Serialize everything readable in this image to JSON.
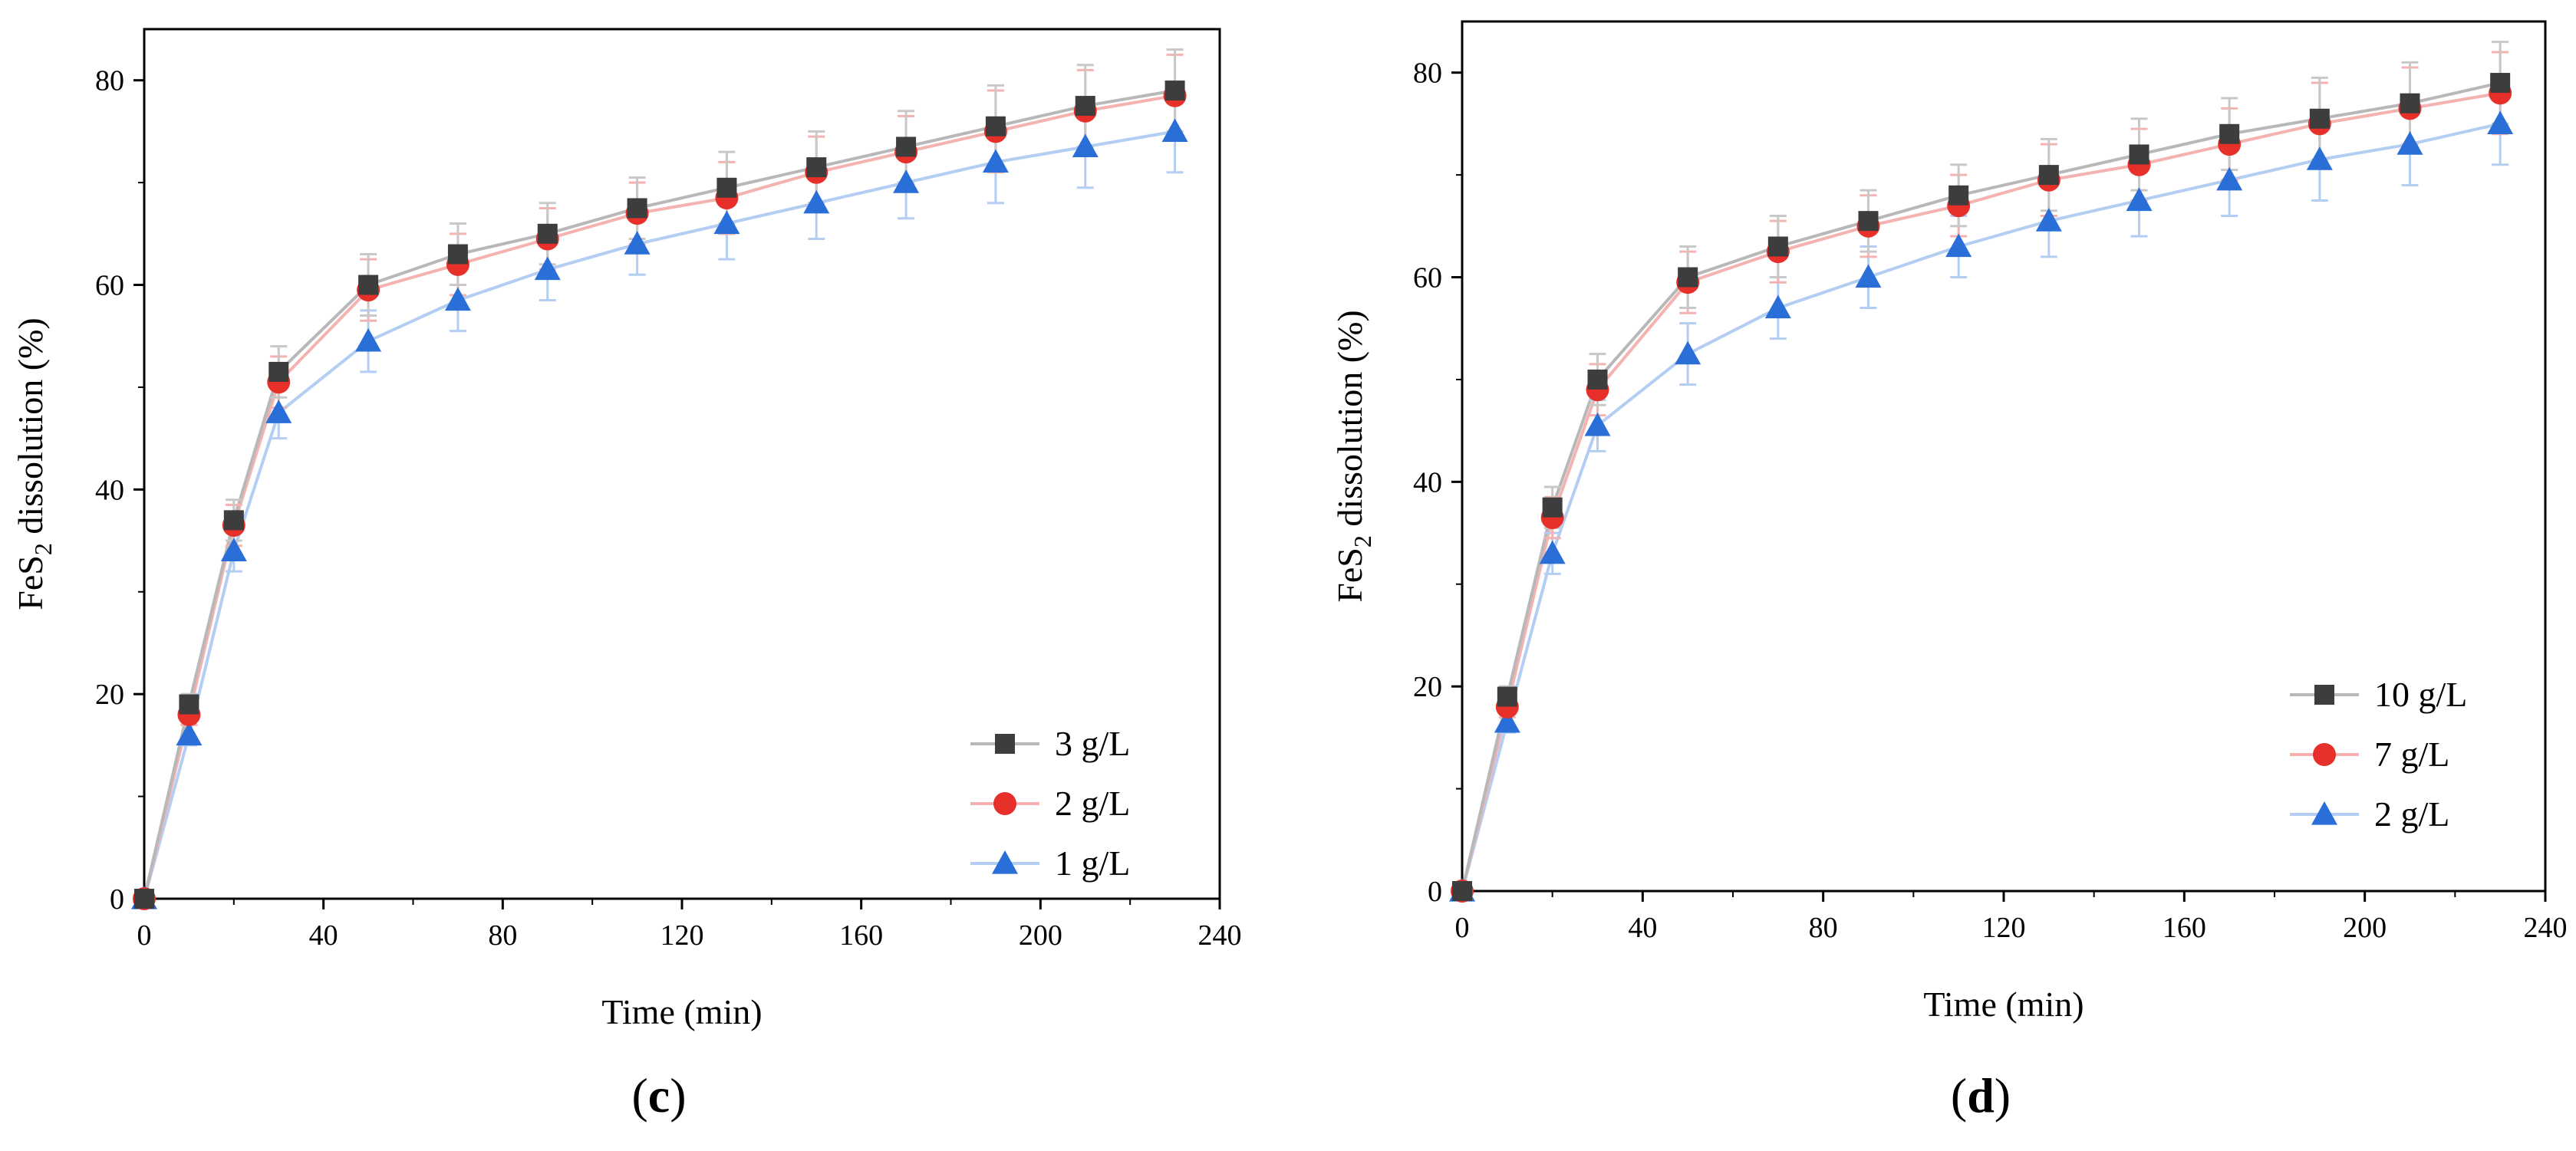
{
  "chart_data": [
    {
      "type": "line",
      "panel_label": "(c)",
      "title": "",
      "xlabel": "Time (min)",
      "ylabel_main": "FeS",
      "ylabel_sub": "2",
      "ylabel_rest": " dissolution (%)",
      "xlim": [
        0,
        240
      ],
      "ylim": [
        0,
        85
      ],
      "xticks": [
        "0",
        "40",
        "80",
        "120",
        "160",
        "200",
        "240"
      ],
      "yticks": [
        "0",
        "20",
        "40",
        "60",
        "80"
      ],
      "legend_position": "bottom-right",
      "x": [
        0,
        10,
        20,
        30,
        50,
        70,
        90,
        110,
        130,
        150,
        170,
        190,
        210,
        230
      ],
      "series": [
        {
          "name": "3 g/L",
          "marker": "square",
          "marker_color": "#3d3d3d",
          "line_color": "#b8b8b8",
          "error_color": "#c8c8c8",
          "values": [
            0,
            19,
            37,
            51.5,
            60,
            63,
            65,
            67.5,
            69.5,
            71.5,
            73.5,
            75.5,
            77.5,
            79
          ],
          "errors": [
            0,
            1,
            2,
            2.5,
            3,
            3,
            3,
            3,
            3.5,
            3.5,
            3.5,
            4,
            4,
            4
          ]
        },
        {
          "name": "2 g/L",
          "marker": "circle",
          "marker_color": "#e8302a",
          "line_color": "#f4b3b0",
          "error_color": "#f4b3b0",
          "values": [
            0,
            18,
            36.5,
            50.5,
            59.5,
            62,
            64.5,
            67,
            68.5,
            71,
            73,
            75,
            77,
            78.5
          ],
          "errors": [
            0,
            1,
            2,
            2.5,
            3,
            3,
            3,
            3,
            3.5,
            3.5,
            3.5,
            4,
            4,
            4
          ]
        },
        {
          "name": "1 g/L",
          "marker": "triangle",
          "marker_color": "#2a6fd8",
          "line_color": "#b3cdf3",
          "error_color": "#b3cdf3",
          "values": [
            0,
            16,
            34,
            47.5,
            54.5,
            58.5,
            61.5,
            64,
            66,
            68,
            70,
            72,
            73.5,
            75
          ],
          "errors": [
            0,
            1,
            2,
            2.5,
            3,
            3,
            3,
            3,
            3.5,
            3.5,
            3.5,
            4,
            4,
            4
          ]
        }
      ]
    },
    {
      "type": "line",
      "panel_label": "(d)",
      "title": "",
      "xlabel": "Time (min)",
      "ylabel_main": "FeS",
      "ylabel_sub": "2",
      "ylabel_rest": " dissolution (%)",
      "xlim": [
        0,
        240
      ],
      "ylim": [
        0,
        85
      ],
      "xticks": [
        "0",
        "40",
        "80",
        "120",
        "160",
        "200",
        "240"
      ],
      "yticks": [
        "0",
        "20",
        "40",
        "60",
        "80"
      ],
      "legend_position": "bottom-right",
      "x": [
        0,
        10,
        20,
        30,
        50,
        70,
        90,
        110,
        130,
        150,
        170,
        190,
        210,
        230
      ],
      "series": [
        {
          "name": "10 g/L",
          "marker": "square",
          "marker_color": "#3d3d3d",
          "line_color": "#b8b8b8",
          "error_color": "#c8c8c8",
          "values": [
            0,
            19,
            37.5,
            50,
            60,
            63,
            65.5,
            68,
            70,
            72,
            74,
            75.5,
            77,
            79
          ],
          "errors": [
            0,
            1,
            2,
            2.5,
            3,
            3,
            3,
            3,
            3.5,
            3.5,
            3.5,
            4,
            4,
            4
          ]
        },
        {
          "name": "7  g/L",
          "marker": "circle",
          "marker_color": "#e8302a",
          "line_color": "#f4b3b0",
          "error_color": "#f4b3b0",
          "values": [
            0,
            18,
            36.5,
            49,
            59.5,
            62.5,
            65,
            67,
            69.5,
            71,
            73,
            75,
            76.5,
            78
          ],
          "errors": [
            0,
            1,
            2,
            2.5,
            3,
            3,
            3,
            3,
            3.5,
            3.5,
            3.5,
            4,
            4,
            4
          ]
        },
        {
          "name": "2  g/L",
          "marker": "triangle",
          "marker_color": "#2a6fd8",
          "line_color": "#b3cdf3",
          "error_color": "#b3cdf3",
          "values": [
            0,
            16.5,
            33,
            45.5,
            52.5,
            57,
            60,
            63,
            65.5,
            67.5,
            69.5,
            71.5,
            73,
            75
          ],
          "errors": [
            0,
            1,
            2,
            2.5,
            3,
            3,
            3,
            3,
            3.5,
            3.5,
            3.5,
            4,
            4,
            4
          ]
        }
      ]
    }
  ]
}
